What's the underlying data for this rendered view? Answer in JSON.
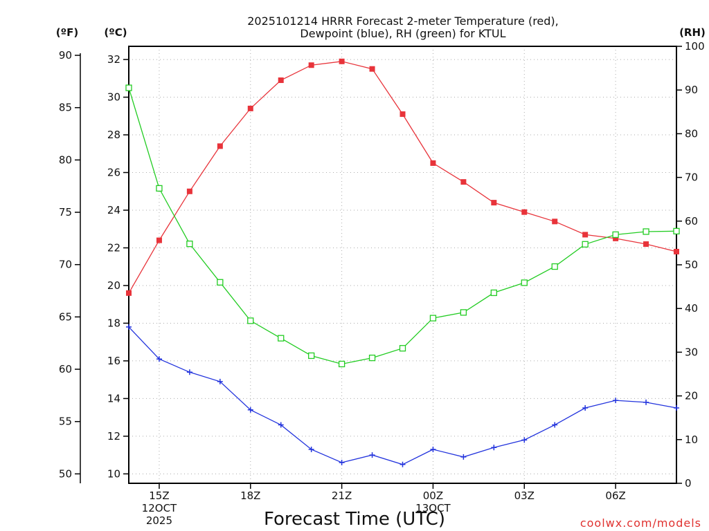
{
  "chart_data": {
    "type": "line",
    "title_line1": "2025101214 HRRR Forecast 2-meter Temperature (red),",
    "title_line2": "Dewpoint (blue), RH (green) for KTUL",
    "xlabel": "Forecast Time (UTC)",
    "credit": "coolwx.com/models",
    "units": {
      "fahrenheit": "(ºF)",
      "celsius": "(ºC)",
      "rh": "(RH)"
    },
    "x_hours": [
      14,
      15,
      16,
      17,
      18,
      19,
      20,
      21,
      22,
      23,
      24,
      25,
      26,
      27,
      28,
      29,
      30,
      31,
      32
    ],
    "xlim": [
      14,
      32
    ],
    "x_ticks": [
      {
        "hour": 15,
        "label": "15Z",
        "date_line1": "12OCT",
        "date_line2": "2025"
      },
      {
        "hour": 18,
        "label": "18Z"
      },
      {
        "hour": 21,
        "label": "21Z"
      },
      {
        "hour": 24,
        "label": "00Z",
        "date_line1": "13OCT"
      },
      {
        "hour": 27,
        "label": "03Z"
      },
      {
        "hour": 30,
        "label": "06Z"
      }
    ],
    "y_celsius": {
      "ylim": [
        9.5,
        32.7
      ],
      "ticks": [
        10,
        12,
        14,
        16,
        18,
        20,
        22,
        24,
        26,
        28,
        30,
        32
      ]
    },
    "y_fahrenheit": {
      "ticks": [
        50,
        55,
        60,
        65,
        70,
        75,
        80,
        85,
        90
      ]
    },
    "y_rh": {
      "ylim": [
        0,
        100
      ],
      "ticks": [
        0,
        10,
        20,
        30,
        40,
        50,
        60,
        70,
        80,
        90,
        100
      ]
    },
    "series": [
      {
        "name": "Temperature",
        "color": "#e8333a",
        "marker": "filled-square",
        "axis": "celsius",
        "values": [
          19.6,
          22.4,
          25.0,
          27.4,
          29.4,
          30.9,
          31.7,
          31.9,
          31.5,
          29.1,
          26.5,
          25.5,
          24.4,
          23.9,
          23.4,
          22.7,
          22.5,
          22.2,
          21.8
        ]
      },
      {
        "name": "Dewpoint",
        "color": "#2233dd",
        "marker": "plus",
        "axis": "celsius",
        "values": [
          17.8,
          16.1,
          15.4,
          14.9,
          13.4,
          12.6,
          11.3,
          10.6,
          11.0,
          10.5,
          11.3,
          10.9,
          11.4,
          11.8,
          12.6,
          13.5,
          13.9,
          13.8,
          13.5
        ]
      },
      {
        "name": "RH",
        "color": "#22cc22",
        "marker": "open-square",
        "axis": "rh",
        "values": [
          90.5,
          67.5,
          54.8,
          46.0,
          37.2,
          33.2,
          29.2,
          27.3,
          28.7,
          30.9,
          37.8,
          39.1,
          43.6,
          45.9,
          49.6,
          54.7,
          56.9,
          57.6,
          57.7
        ]
      }
    ]
  }
}
